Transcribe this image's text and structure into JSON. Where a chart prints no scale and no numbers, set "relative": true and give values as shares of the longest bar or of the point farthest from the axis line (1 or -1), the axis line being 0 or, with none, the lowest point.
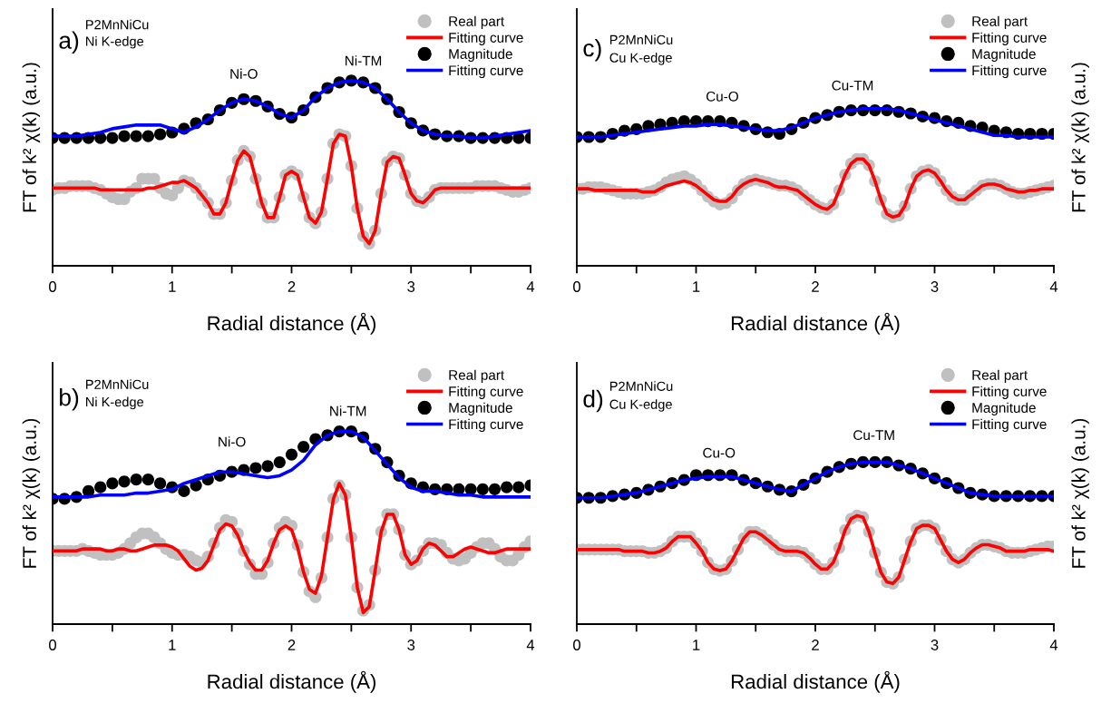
{
  "chart_data": [
    {
      "type": "line",
      "relative": true,
      "xlabel": "Radial distance (Å)",
      "ylabel": "FT of k² χ(k) (a.u.)",
      "legend": "top right",
      "xlim": [
        0,
        4
      ],
      "xticks": [
        0,
        {
          "value": 0.5,
          "label": null
        },
        1,
        {
          "value": 1.5,
          "label": null
        },
        2,
        {
          "value": 2.5,
          "label": null
        },
        3,
        {
          "value": 3.5,
          "label": null
        },
        4
      ],
      "annotations": [
        "a)",
        "P2MnNiCu",
        "Ni K-edge",
        "Ni-O",
        "Ni-TM"
      ],
      "x": [
        0,
        0.05,
        0.1,
        0.15,
        0.2,
        0.25,
        0.3,
        0.35,
        0.4,
        0.45,
        0.5,
        0.55,
        0.6,
        0.65,
        0.7,
        0.75,
        0.8,
        0.85,
        0.9,
        0.95,
        1,
        1.05,
        1.1,
        1.15,
        1.2,
        1.25,
        1.3,
        1.35,
        1.4,
        1.45,
        1.5,
        1.55,
        1.6,
        1.65,
        1.7,
        1.75,
        1.8,
        1.85,
        1.9,
        1.95,
        2,
        2.05,
        2.1,
        2.15,
        2.2,
        2.25,
        2.3,
        2.35,
        2.4,
        2.45,
        2.5,
        2.55,
        2.6,
        2.65,
        2.7,
        2.75,
        2.8,
        2.85,
        2.9,
        2.95,
        3,
        3.05,
        3.1,
        3.15,
        3.2,
        3.25,
        3.3,
        3.35,
        3.4,
        3.45,
        3.5,
        3.55,
        3.6,
        3.65,
        3.7,
        3.75,
        3.8,
        3.85,
        3.9,
        3.95,
        4
      ],
      "series": [
        {
          "name": "Real part",
          "type": "scatter",
          "color": "#c0c0c0",
          "values": [
            0.41,
            0.42,
            0.42,
            0.43,
            0.43,
            0.43,
            0.43,
            0.42,
            0.41,
            0.39,
            0.37,
            0.36,
            0.36,
            0.4,
            0.42,
            0.47,
            0.47,
            0.47,
            0.42,
            0.39,
            0.38,
            0.42,
            0.46,
            0.45,
            0.42,
            0.38,
            0.34,
            0.28,
            0.28,
            0.34,
            0.46,
            0.57,
            0.62,
            0.59,
            0.47,
            0.34,
            0.26,
            0.26,
            0.37,
            0.49,
            0.51,
            0.49,
            0.37,
            0.26,
            0.23,
            0.29,
            0.47,
            0.66,
            0.71,
            0.7,
            0.54,
            0.31,
            0.16,
            0.12,
            0.19,
            0.39,
            0.56,
            0.59,
            0.58,
            0.49,
            0.39,
            0.35,
            0.34,
            0.37,
            0.41,
            0.42,
            0.42,
            0.42,
            0.42,
            0.42,
            0.42,
            0.43,
            0.43,
            0.43,
            0.43,
            0.42,
            0.41,
            0.4,
            0.4,
            0.41,
            0.42
          ]
        },
        {
          "name": "Fitting curve",
          "color": "#ff0000",
          "values": [
            0.42,
            0.42,
            0.42,
            0.42,
            0.42,
            0.42,
            0.42,
            0.42,
            0.41,
            0.41,
            0.41,
            0.41,
            0.41,
            0.41,
            0.41,
            0.41,
            0.42,
            0.42,
            0.43,
            0.44,
            0.45,
            0.45,
            0.46,
            0.44,
            0.42,
            0.38,
            0.34,
            0.28,
            0.28,
            0.34,
            0.46,
            0.57,
            0.62,
            0.59,
            0.47,
            0.34,
            0.26,
            0.26,
            0.37,
            0.49,
            0.51,
            0.49,
            0.37,
            0.26,
            0.23,
            0.29,
            0.47,
            0.66,
            0.71,
            0.7,
            0.54,
            0.31,
            0.16,
            0.12,
            0.19,
            0.39,
            0.56,
            0.59,
            0.58,
            0.49,
            0.39,
            0.35,
            0.34,
            0.37,
            0.41,
            0.42,
            0.42,
            0.42,
            0.42,
            0.42,
            0.42,
            0.42,
            0.42,
            0.42,
            0.42,
            0.42,
            0.42,
            0.42,
            0.42,
            0.42,
            0.42
          ]
        },
        {
          "name": "Magnitude",
          "type": "scatter",
          "color": "#000000",
          "x": [
            0,
            0.1,
            0.2,
            0.3,
            0.4,
            0.5,
            0.6,
            0.7,
            0.8,
            0.9,
            1,
            1.1,
            1.2,
            1.3,
            1.4,
            1.5,
            1.6,
            1.7,
            1.8,
            1.9,
            2,
            2.1,
            2.2,
            2.3,
            2.4,
            2.5,
            2.6,
            2.7,
            2.8,
            2.9,
            3,
            3.1,
            3.2,
            3.3,
            3.4,
            3.5,
            3.6,
            3.7,
            3.8,
            3.9,
            4
          ],
          "values": [
            0.69,
            0.69,
            0.69,
            0.69,
            0.69,
            0.69,
            0.7,
            0.7,
            0.7,
            0.71,
            0.72,
            0.74,
            0.77,
            0.79,
            0.84,
            0.88,
            0.9,
            0.89,
            0.86,
            0.82,
            0.8,
            0.84,
            0.91,
            0.96,
            0.99,
            1.0,
            0.99,
            0.96,
            0.9,
            0.83,
            0.77,
            0.73,
            0.71,
            0.7,
            0.7,
            0.69,
            0.69,
            0.69,
            0.69,
            0.69,
            0.69
          ]
        },
        {
          "name": "Fitting curve",
          "type": "line",
          "color": "#0000ff",
          "x": [
            0,
            0.1,
            0.2,
            0.3,
            0.4,
            0.5,
            0.6,
            0.7,
            0.8,
            0.9,
            1,
            1.1,
            1.2,
            1.3,
            1.4,
            1.5,
            1.6,
            1.7,
            1.8,
            1.9,
            2,
            2.1,
            2.2,
            2.3,
            2.4,
            2.5,
            2.6,
            2.7,
            2.8,
            2.9,
            3,
            3.1,
            3.2,
            3.3,
            3.4,
            3.5,
            3.6,
            3.7,
            3.8,
            3.9,
            4
          ],
          "values": [
            0.7,
            0.7,
            0.7,
            0.71,
            0.72,
            0.74,
            0.75,
            0.76,
            0.76,
            0.76,
            0.74,
            0.72,
            0.75,
            0.79,
            0.84,
            0.88,
            0.9,
            0.89,
            0.86,
            0.82,
            0.8,
            0.84,
            0.91,
            0.96,
            0.99,
            1.0,
            0.99,
            0.96,
            0.9,
            0.83,
            0.77,
            0.73,
            0.71,
            0.7,
            0.7,
            0.69,
            0.69,
            0.7,
            0.71,
            0.72,
            0.73
          ]
        }
      ]
    },
    {
      "type": "line",
      "relative": true,
      "xlabel": "Radial distance (Å)",
      "ylabel": "FT of k² χ(k) (a.u.)",
      "legend": "top right",
      "xlim": [
        0,
        4
      ],
      "xticks": [
        0,
        {
          "value": 0.5,
          "label": null
        },
        1,
        {
          "value": 1.5,
          "label": null
        },
        2,
        {
          "value": 2.5,
          "label": null
        },
        3,
        {
          "value": 3.5,
          "label": null
        },
        4
      ],
      "annotations": [
        "c)",
        "P2MnNiCu",
        "Cu K-edge",
        "Cu-O",
        "Cu-TM"
      ],
      "x": [
        0,
        0.05,
        0.1,
        0.15,
        0.2,
        0.25,
        0.3,
        0.35,
        0.4,
        0.45,
        0.5,
        0.55,
        0.6,
        0.65,
        0.7,
        0.75,
        0.8,
        0.85,
        0.9,
        0.95,
        1,
        1.05,
        1.1,
        1.15,
        1.2,
        1.25,
        1.3,
        1.35,
        1.4,
        1.45,
        1.5,
        1.55,
        1.6,
        1.65,
        1.7,
        1.75,
        1.8,
        1.85,
        1.9,
        1.95,
        2,
        2.05,
        2.1,
        2.15,
        2.2,
        2.25,
        2.3,
        2.35,
        2.4,
        2.45,
        2.5,
        2.55,
        2.6,
        2.65,
        2.7,
        2.75,
        2.8,
        2.85,
        2.9,
        2.95,
        3,
        3.05,
        3.1,
        3.15,
        3.2,
        3.25,
        3.3,
        3.35,
        3.4,
        3.45,
        3.5,
        3.55,
        3.6,
        3.65,
        3.7,
        3.75,
        3.8,
        3.85,
        3.9,
        3.95,
        4
      ],
      "series": [
        {
          "name": "Real part",
          "type": "scatter",
          "color": "#c0c0c0",
          "values": [
            0.49,
            0.49,
            0.5,
            0.5,
            0.5,
            0.49,
            0.48,
            0.47,
            0.46,
            0.46,
            0.46,
            0.46,
            0.47,
            0.48,
            0.5,
            0.53,
            0.55,
            0.56,
            0.57,
            0.55,
            0.52,
            0.48,
            0.44,
            0.41,
            0.39,
            0.4,
            0.43,
            0.48,
            0.52,
            0.54,
            0.55,
            0.54,
            0.53,
            0.52,
            0.51,
            0.51,
            0.5,
            0.48,
            0.45,
            0.42,
            0.39,
            0.37,
            0.36,
            0.39,
            0.48,
            0.58,
            0.65,
            0.68,
            0.68,
            0.64,
            0.54,
            0.42,
            0.33,
            0.31,
            0.32,
            0.38,
            0.49,
            0.57,
            0.6,
            0.61,
            0.59,
            0.54,
            0.48,
            0.44,
            0.42,
            0.42,
            0.45,
            0.48,
            0.51,
            0.52,
            0.52,
            0.51,
            0.49,
            0.47,
            0.46,
            0.46,
            0.47,
            0.48,
            0.49,
            0.5,
            0.51
          ]
        },
        {
          "name": "Fitting curve",
          "color": "#ff0000",
          "values": [
            0.49,
            0.49,
            0.49,
            0.48,
            0.48,
            0.48,
            0.48,
            0.48,
            0.48,
            0.48,
            0.48,
            0.47,
            0.47,
            0.47,
            0.49,
            0.51,
            0.52,
            0.53,
            0.54,
            0.53,
            0.51,
            0.48,
            0.45,
            0.42,
            0.41,
            0.41,
            0.44,
            0.49,
            0.52,
            0.54,
            0.55,
            0.54,
            0.53,
            0.51,
            0.5,
            0.5,
            0.49,
            0.48,
            0.45,
            0.42,
            0.39,
            0.37,
            0.36,
            0.39,
            0.48,
            0.58,
            0.65,
            0.68,
            0.68,
            0.64,
            0.54,
            0.42,
            0.33,
            0.31,
            0.32,
            0.38,
            0.49,
            0.57,
            0.6,
            0.61,
            0.59,
            0.54,
            0.48,
            0.44,
            0.42,
            0.42,
            0.45,
            0.48,
            0.51,
            0.52,
            0.52,
            0.51,
            0.49,
            0.48,
            0.47,
            0.47,
            0.48,
            0.48,
            0.49,
            0.49,
            0.49
          ]
        },
        {
          "name": "Magnitude",
          "type": "scatter",
          "color": "#000000",
          "x": [
            0,
            0.1,
            0.2,
            0.3,
            0.4,
            0.5,
            0.6,
            0.7,
            0.8,
            0.9,
            1,
            1.1,
            1.2,
            1.3,
            1.4,
            1.5,
            1.6,
            1.7,
            1.8,
            1.9,
            2,
            2.1,
            2.2,
            2.3,
            2.4,
            2.5,
            2.6,
            2.7,
            2.8,
            2.9,
            3,
            3.1,
            3.2,
            3.3,
            3.4,
            3.5,
            3.6,
            3.7,
            3.8,
            3.9,
            4
          ],
          "values": [
            0.82,
            0.82,
            0.82,
            0.84,
            0.86,
            0.87,
            0.89,
            0.9,
            0.91,
            0.92,
            0.92,
            0.92,
            0.92,
            0.91,
            0.89,
            0.87,
            0.85,
            0.84,
            0.87,
            0.91,
            0.94,
            0.96,
            0.98,
            0.99,
            0.99,
            0.99,
            0.99,
            0.98,
            0.97,
            0.95,
            0.94,
            0.92,
            0.91,
            0.89,
            0.88,
            0.86,
            0.85,
            0.84,
            0.84,
            0.84,
            0.84
          ]
        },
        {
          "name": "Fitting curve",
          "type": "line",
          "color": "#0000ff",
          "x": [
            0,
            0.1,
            0.2,
            0.3,
            0.4,
            0.5,
            0.6,
            0.7,
            0.8,
            0.9,
            1,
            1.1,
            1.2,
            1.3,
            1.4,
            1.5,
            1.6,
            1.7,
            1.8,
            1.9,
            2,
            2.1,
            2.2,
            2.3,
            2.4,
            2.5,
            2.6,
            2.7,
            2.8,
            2.9,
            3,
            3.1,
            3.2,
            3.3,
            3.4,
            3.5,
            3.6,
            3.7,
            3.8,
            3.9,
            4
          ],
          "values": [
            0.82,
            0.82,
            0.82,
            0.83,
            0.84,
            0.85,
            0.86,
            0.87,
            0.88,
            0.89,
            0.89,
            0.9,
            0.9,
            0.89,
            0.88,
            0.87,
            0.86,
            0.86,
            0.88,
            0.91,
            0.94,
            0.96,
            0.98,
            0.99,
            1.0,
            1.0,
            1.0,
            0.99,
            0.97,
            0.95,
            0.93,
            0.91,
            0.89,
            0.87,
            0.85,
            0.83,
            0.83,
            0.82,
            0.82,
            0.82,
            0.82
          ]
        }
      ]
    },
    {
      "type": "line",
      "relative": true,
      "xlabel": "Radial distance (Å)",
      "ylabel": "FT of k² χ(k) (a.u.)",
      "legend": "top right",
      "xlim": [
        0,
        4
      ],
      "xticks": [
        0,
        {
          "value": 0.5,
          "label": null
        },
        1,
        {
          "value": 1.5,
          "label": null
        },
        2,
        {
          "value": 2.5,
          "label": null
        },
        3,
        {
          "value": 3.5,
          "label": null
        },
        4
      ],
      "annotations": [
        "b)",
        "P2MnNiCu",
        "Ni K-edge",
        "Ni-O",
        "Ni-TM"
      ],
      "x": [
        0,
        0.05,
        0.1,
        0.15,
        0.2,
        0.25,
        0.3,
        0.35,
        0.4,
        0.45,
        0.5,
        0.55,
        0.6,
        0.65,
        0.7,
        0.75,
        0.8,
        0.85,
        0.9,
        0.95,
        1,
        1.05,
        1.1,
        1.15,
        1.2,
        1.25,
        1.3,
        1.35,
        1.4,
        1.45,
        1.5,
        1.55,
        1.6,
        1.65,
        1.7,
        1.75,
        1.8,
        1.85,
        1.9,
        1.95,
        2,
        2.05,
        2.1,
        2.15,
        2.2,
        2.25,
        2.3,
        2.35,
        2.4,
        2.45,
        2.5,
        2.55,
        2.6,
        2.65,
        2.7,
        2.75,
        2.8,
        2.85,
        2.9,
        2.95,
        3,
        3.05,
        3.1,
        3.15,
        3.2,
        3.25,
        3.3,
        3.35,
        3.4,
        3.45,
        3.5,
        3.55,
        3.6,
        3.65,
        3.7,
        3.75,
        3.8,
        3.85,
        3.9,
        3.95,
        4
      ],
      "series": [
        {
          "name": "Real part",
          "type": "scatter",
          "color": "#c0c0c0",
          "values": [
            0.38,
            0.38,
            0.38,
            0.38,
            0.38,
            0.39,
            0.38,
            0.37,
            0.36,
            0.36,
            0.36,
            0.37,
            0.39,
            0.42,
            0.45,
            0.47,
            0.47,
            0.45,
            0.42,
            0.39,
            0.37,
            0.36,
            0.36,
            0.35,
            0.33,
            0.32,
            0.35,
            0.42,
            0.5,
            0.54,
            0.53,
            0.47,
            0.38,
            0.31,
            0.26,
            0.26,
            0.32,
            0.42,
            0.5,
            0.53,
            0.51,
            0.41,
            0.27,
            0.17,
            0.14,
            0.24,
            0.45,
            0.65,
            0.72,
            0.67,
            0.45,
            0.19,
            0.07,
            0.1,
            0.28,
            0.48,
            0.57,
            0.57,
            0.49,
            0.36,
            0.31,
            0.33,
            0.38,
            0.42,
            0.42,
            0.41,
            0.37,
            0.34,
            0.33,
            0.34,
            0.37,
            0.4,
            0.42,
            0.42,
            0.39,
            0.35,
            0.33,
            0.33,
            0.36,
            0.4,
            0.43
          ]
        },
        {
          "name": "Fitting curve",
          "color": "#ff0000",
          "values": [
            0.38,
            0.38,
            0.38,
            0.38,
            0.38,
            0.39,
            0.39,
            0.39,
            0.39,
            0.38,
            0.38,
            0.39,
            0.39,
            0.38,
            0.38,
            0.39,
            0.4,
            0.41,
            0.41,
            0.41,
            0.4,
            0.38,
            0.34,
            0.3,
            0.28,
            0.29,
            0.33,
            0.41,
            0.49,
            0.52,
            0.51,
            0.46,
            0.38,
            0.32,
            0.28,
            0.28,
            0.33,
            0.42,
            0.49,
            0.51,
            0.49,
            0.4,
            0.27,
            0.18,
            0.16,
            0.25,
            0.45,
            0.65,
            0.73,
            0.67,
            0.45,
            0.19,
            0.06,
            0.09,
            0.28,
            0.48,
            0.57,
            0.57,
            0.49,
            0.36,
            0.31,
            0.33,
            0.39,
            0.42,
            0.41,
            0.38,
            0.35,
            0.35,
            0.37,
            0.39,
            0.4,
            0.39,
            0.38,
            0.37,
            0.37,
            0.38,
            0.39,
            0.39,
            0.39,
            0.39,
            0.39
          ]
        },
        {
          "name": "Magnitude",
          "type": "scatter",
          "color": "#000000",
          "x": [
            0,
            0.1,
            0.2,
            0.3,
            0.4,
            0.5,
            0.6,
            0.7,
            0.8,
            0.9,
            1,
            1.1,
            1.2,
            1.3,
            1.4,
            1.5,
            1.6,
            1.7,
            1.8,
            1.9,
            2,
            2.1,
            2.2,
            2.3,
            2.4,
            2.5,
            2.6,
            2.7,
            2.8,
            2.9,
            3,
            3.1,
            3.2,
            3.3,
            3.4,
            3.5,
            3.6,
            3.7,
            3.8,
            3.9,
            4
          ],
          "values": [
            0.65,
            0.65,
            0.66,
            0.69,
            0.71,
            0.73,
            0.74,
            0.75,
            0.75,
            0.73,
            0.71,
            0.69,
            0.72,
            0.75,
            0.77,
            0.79,
            0.8,
            0.81,
            0.82,
            0.84,
            0.88,
            0.92,
            0.96,
            0.98,
            1.0,
            1.0,
            0.97,
            0.91,
            0.84,
            0.77,
            0.73,
            0.71,
            0.7,
            0.7,
            0.7,
            0.7,
            0.7,
            0.7,
            0.71,
            0.71,
            0.72
          ]
        },
        {
          "name": "Fitting curve",
          "type": "line",
          "color": "#0000ff",
          "x": [
            0,
            0.1,
            0.2,
            0.3,
            0.4,
            0.5,
            0.6,
            0.7,
            0.8,
            0.9,
            1,
            1.1,
            1.2,
            1.3,
            1.4,
            1.5,
            1.6,
            1.7,
            1.8,
            1.9,
            2,
            2.1,
            2.2,
            2.3,
            2.4,
            2.5,
            2.6,
            2.7,
            2.8,
            2.9,
            3,
            3.1,
            3.2,
            3.3,
            3.4,
            3.5,
            3.6,
            3.7,
            3.8,
            3.9,
            4
          ],
          "values": [
            0.66,
            0.66,
            0.66,
            0.66,
            0.67,
            0.67,
            0.67,
            0.68,
            0.68,
            0.69,
            0.7,
            0.73,
            0.75,
            0.77,
            0.79,
            0.79,
            0.78,
            0.77,
            0.76,
            0.77,
            0.8,
            0.85,
            0.93,
            0.98,
            1.0,
            1.0,
            0.97,
            0.9,
            0.83,
            0.76,
            0.71,
            0.69,
            0.69,
            0.68,
            0.67,
            0.67,
            0.66,
            0.66,
            0.66,
            0.66,
            0.66
          ]
        }
      ]
    },
    {
      "type": "line",
      "relative": true,
      "xlabel": "Radial distance (Å)",
      "ylabel": "FT of k² χ(k) (a.u.)",
      "legend": "top right",
      "xlim": [
        0,
        4
      ],
      "xticks": [
        0,
        {
          "value": 0.5,
          "label": null
        },
        1,
        {
          "value": 1.5,
          "label": null
        },
        2,
        {
          "value": 2.5,
          "label": null
        },
        3,
        {
          "value": 3.5,
          "label": null
        },
        4
      ],
      "annotations": [
        "d)",
        "P2MnNiCu",
        "Cu K-edge",
        "Cu-O",
        "Cu-TM"
      ],
      "x": [
        0,
        0.05,
        0.1,
        0.15,
        0.2,
        0.25,
        0.3,
        0.35,
        0.4,
        0.45,
        0.5,
        0.55,
        0.6,
        0.65,
        0.7,
        0.75,
        0.8,
        0.85,
        0.9,
        0.95,
        1,
        1.05,
        1.1,
        1.15,
        1.2,
        1.25,
        1.3,
        1.35,
        1.4,
        1.45,
        1.5,
        1.55,
        1.6,
        1.65,
        1.7,
        1.75,
        1.8,
        1.85,
        1.9,
        1.95,
        2,
        2.05,
        2.1,
        2.15,
        2.2,
        2.25,
        2.3,
        2.35,
        2.4,
        2.45,
        2.5,
        2.55,
        2.6,
        2.65,
        2.7,
        2.75,
        2.8,
        2.85,
        2.9,
        2.95,
        3,
        3.05,
        3.1,
        3.15,
        3.2,
        3.25,
        3.3,
        3.35,
        3.4,
        3.45,
        3.5,
        3.55,
        3.6,
        3.65,
        3.7,
        3.75,
        3.8,
        3.85,
        3.9,
        3.95,
        4
      ],
      "series": [
        {
          "name": "Real part",
          "type": "scatter",
          "color": "#c0c0c0",
          "values": [
            0.46,
            0.46,
            0.46,
            0.46,
            0.46,
            0.46,
            0.46,
            0.46,
            0.45,
            0.45,
            0.45,
            0.45,
            0.44,
            0.44,
            0.45,
            0.47,
            0.51,
            0.54,
            0.54,
            0.54,
            0.5,
            0.45,
            0.38,
            0.34,
            0.33,
            0.34,
            0.39,
            0.46,
            0.53,
            0.57,
            0.57,
            0.55,
            0.52,
            0.49,
            0.46,
            0.45,
            0.45,
            0.45,
            0.44,
            0.41,
            0.37,
            0.34,
            0.34,
            0.38,
            0.47,
            0.58,
            0.65,
            0.67,
            0.66,
            0.57,
            0.44,
            0.32,
            0.26,
            0.25,
            0.29,
            0.4,
            0.51,
            0.59,
            0.61,
            0.61,
            0.59,
            0.52,
            0.45,
            0.4,
            0.38,
            0.4,
            0.44,
            0.47,
            0.49,
            0.49,
            0.48,
            0.47,
            0.45,
            0.44,
            0.44,
            0.44,
            0.45,
            0.46,
            0.47,
            0.48,
            0.48
          ]
        },
        {
          "name": "Fitting curve",
          "color": "#ff0000",
          "values": [
            0.46,
            0.46,
            0.46,
            0.46,
            0.46,
            0.46,
            0.46,
            0.46,
            0.45,
            0.45,
            0.45,
            0.45,
            0.44,
            0.44,
            0.45,
            0.47,
            0.51,
            0.54,
            0.54,
            0.54,
            0.5,
            0.45,
            0.38,
            0.34,
            0.33,
            0.34,
            0.39,
            0.46,
            0.53,
            0.57,
            0.57,
            0.55,
            0.52,
            0.49,
            0.46,
            0.45,
            0.45,
            0.45,
            0.44,
            0.41,
            0.37,
            0.34,
            0.34,
            0.38,
            0.47,
            0.58,
            0.65,
            0.67,
            0.66,
            0.57,
            0.44,
            0.32,
            0.26,
            0.25,
            0.29,
            0.4,
            0.51,
            0.59,
            0.61,
            0.61,
            0.59,
            0.52,
            0.45,
            0.4,
            0.38,
            0.4,
            0.44,
            0.47,
            0.49,
            0.49,
            0.48,
            0.47,
            0.45,
            0.45,
            0.45,
            0.45,
            0.46,
            0.46,
            0.46,
            0.46,
            0.45
          ]
        },
        {
          "name": "Magnitude",
          "type": "scatter",
          "color": "#000000",
          "x": [
            0,
            0.1,
            0.2,
            0.3,
            0.4,
            0.5,
            0.6,
            0.7,
            0.8,
            0.9,
            1,
            1.1,
            1.2,
            1.3,
            1.4,
            1.5,
            1.6,
            1.7,
            1.8,
            1.9,
            2,
            2.1,
            2.2,
            2.3,
            2.4,
            2.5,
            2.6,
            2.7,
            2.8,
            2.9,
            3,
            3.1,
            3.2,
            3.3,
            3.4,
            3.5,
            3.6,
            3.7,
            3.8,
            3.9,
            4
          ],
          "values": [
            0.78,
            0.78,
            0.78,
            0.79,
            0.8,
            0.81,
            0.83,
            0.85,
            0.87,
            0.89,
            0.92,
            0.92,
            0.92,
            0.92,
            0.89,
            0.87,
            0.85,
            0.83,
            0.82,
            0.86,
            0.9,
            0.94,
            0.97,
            0.99,
            1.0,
            1.0,
            1.0,
            0.98,
            0.96,
            0.93,
            0.9,
            0.87,
            0.84,
            0.81,
            0.8,
            0.79,
            0.79,
            0.79,
            0.79,
            0.79,
            0.79
          ]
        },
        {
          "name": "Fitting curve",
          "type": "line",
          "color": "#0000ff",
          "x": [
            0,
            0.1,
            0.2,
            0.3,
            0.4,
            0.5,
            0.6,
            0.7,
            0.8,
            0.9,
            1,
            1.1,
            1.2,
            1.3,
            1.4,
            1.5,
            1.6,
            1.7,
            1.8,
            1.9,
            2,
            2.1,
            2.2,
            2.3,
            2.4,
            2.5,
            2.6,
            2.7,
            2.8,
            2.9,
            3,
            3.1,
            3.2,
            3.3,
            3.4,
            3.5,
            3.6,
            3.7,
            3.8,
            3.9,
            4
          ],
          "values": [
            0.78,
            0.78,
            0.78,
            0.79,
            0.8,
            0.81,
            0.83,
            0.85,
            0.87,
            0.89,
            0.9,
            0.91,
            0.91,
            0.91,
            0.89,
            0.87,
            0.85,
            0.83,
            0.82,
            0.86,
            0.9,
            0.94,
            0.97,
            0.99,
            1.0,
            1.0,
            1.0,
            0.98,
            0.96,
            0.93,
            0.9,
            0.87,
            0.84,
            0.81,
            0.8,
            0.79,
            0.79,
            0.79,
            0.79,
            0.79,
            0.79
          ]
        }
      ]
    }
  ]
}
